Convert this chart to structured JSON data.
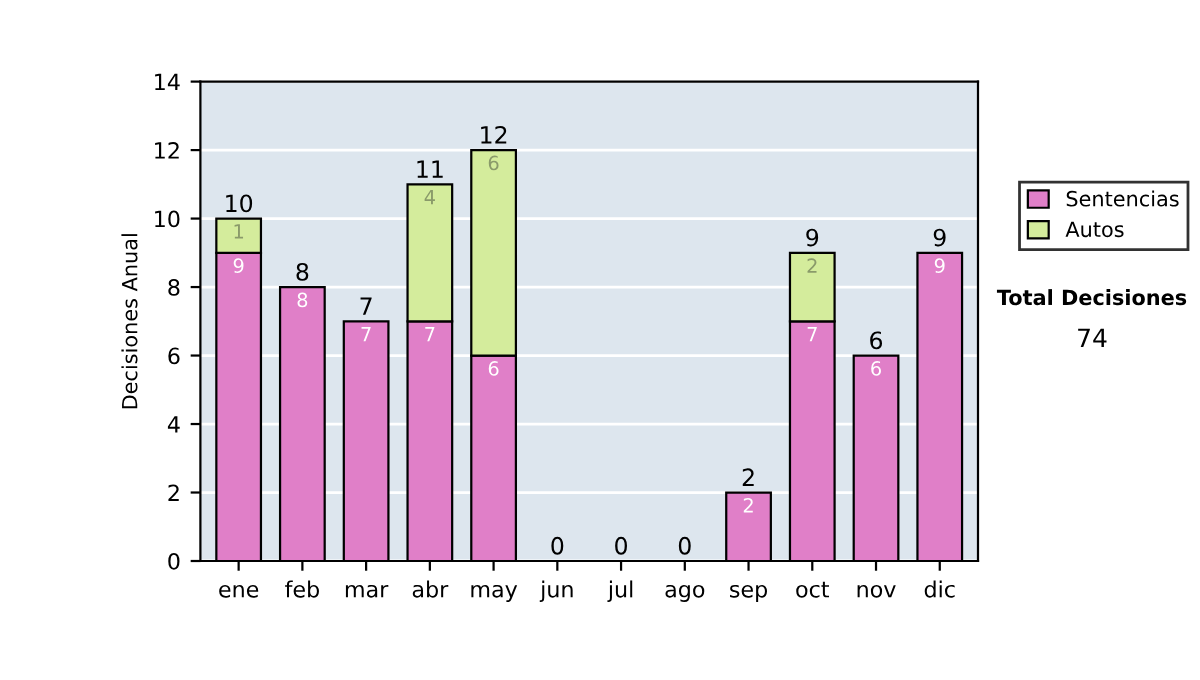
{
  "chart_data": {
    "type": "bar",
    "stacked": true,
    "ylabel": "Decisiones Anual",
    "categories": [
      "ene",
      "feb",
      "mar",
      "abr",
      "may",
      "jun",
      "jul",
      "ago",
      "sep",
      "oct",
      "nov",
      "dic"
    ],
    "series": [
      {
        "name": "Sentencias",
        "color": "#e07fc8",
        "values": [
          9,
          8,
          7,
          7,
          6,
          0,
          0,
          0,
          2,
          7,
          6,
          9
        ],
        "value_labels": [
          "9",
          "8",
          "7",
          "7",
          "6",
          null,
          null,
          null,
          "2",
          "7",
          "6",
          "9"
        ]
      },
      {
        "name": "Autos",
        "color": "#d4ec9c",
        "values": [
          1,
          0,
          0,
          4,
          6,
          0,
          0,
          0,
          0,
          2,
          0,
          0
        ],
        "value_labels": [
          "1",
          null,
          null,
          "4",
          "6",
          null,
          null,
          null,
          null,
          "2",
          null,
          null
        ]
      }
    ],
    "totals": [
      "10",
      "8",
      "7",
      "11",
      "12",
      "0",
      "0",
      "0",
      "2",
      "9",
      "6",
      "9"
    ],
    "ylim": [
      0,
      14
    ],
    "yticks": [
      0,
      2,
      4,
      6,
      8,
      10,
      12,
      14
    ],
    "grid": "y",
    "legend": "right",
    "annotations": [
      "Total Decisiones",
      "74"
    ]
  }
}
